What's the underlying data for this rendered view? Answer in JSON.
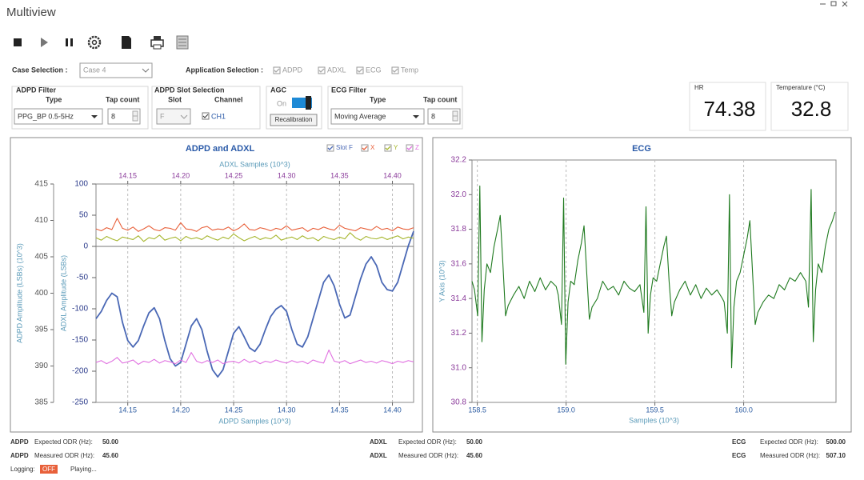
{
  "window": {
    "title": "Multiview"
  },
  "case_selection": {
    "label": "Case Selection :",
    "value": "Case 4"
  },
  "application_selection": {
    "label": "Application Selection :",
    "options": [
      "ADPD",
      "ADXL",
      "ECG",
      "Temp"
    ]
  },
  "adpd_filter": {
    "title": "ADPD Filter",
    "type_label": "Type",
    "tap_label": "Tap count",
    "type": "PPG_BP 0.5-5Hz",
    "tap_count": "8"
  },
  "slot_selection": {
    "title": "ADPD Slot Selection",
    "slot_label": "Slot",
    "channel_label": "Channel",
    "slot": "F",
    "channel": "CH1"
  },
  "agc": {
    "title": "AGC",
    "state": "On",
    "button": "Recalibration"
  },
  "ecg_filter": {
    "title": "ECG Filter",
    "type_label": "Type",
    "tap_label": "Tap count",
    "type": "Moving Average",
    "tap_count": "8"
  },
  "hr": {
    "label": "HR",
    "value": 74.38
  },
  "temperature": {
    "label": "Temperature (°C)",
    "value": 32.8
  },
  "chart_data": [
    {
      "type": "line",
      "title": "ADPD and ADXL",
      "xlabel": "ADPD Samples (10^3)",
      "x2label": "ADXL Samples (10^3)",
      "ylabel": "ADPD Amplitude (LSBs) (10^3)",
      "y2label": "ADXL Amplitude (LSBs)",
      "xlim": [
        14.12,
        14.42
      ],
      "xticks": [
        14.15,
        {
          "value": 14.2,
          "label": "14.20"
        },
        14.25,
        {
          "value": 14.3,
          "label": "14.30"
        },
        14.35,
        {
          "value": 14.4,
          "label": "14.40"
        }
      ],
      "x2ticks": [
        14.15,
        {
          "value": 14.2,
          "label": "14.20"
        },
        14.25,
        {
          "value": 14.3,
          "label": "14.30"
        },
        14.35,
        {
          "value": 14.4,
          "label": "14.40"
        }
      ],
      "ylim": [
        385,
        415
      ],
      "yticks": [
        385,
        390,
        395,
        400,
        405,
        410,
        415
      ],
      "y2lim": [
        -250,
        100
      ],
      "y2ticks": [
        -250,
        -200,
        -150,
        -100,
        -50,
        0,
        50,
        100
      ],
      "grid": "x",
      "x": [
        14.12,
        14.125,
        14.13,
        14.135,
        14.14,
        14.145,
        14.15,
        14.155,
        14.16,
        14.165,
        14.17,
        14.175,
        14.18,
        14.185,
        14.19,
        14.195,
        14.2,
        14.205,
        14.21,
        14.215,
        14.22,
        14.225,
        14.23,
        14.235,
        14.24,
        14.245,
        14.25,
        14.255,
        14.26,
        14.265,
        14.27,
        14.275,
        14.28,
        14.285,
        14.29,
        14.295,
        14.3,
        14.305,
        14.31,
        14.315,
        14.32,
        14.325,
        14.33,
        14.335,
        14.34,
        14.345,
        14.35,
        14.355,
        14.36,
        14.365,
        14.37,
        14.375,
        14.38,
        14.385,
        14.39,
        14.395,
        14.4,
        14.405,
        14.41,
        14.415,
        14.42
      ],
      "series": [
        {
          "name": "Slot F",
          "color": "#4a68b5",
          "axis": "y",
          "values": [
            396.5,
            397.5,
            399,
            400,
            399.5,
            396,
            393.5,
            392.6,
            393.5,
            395.5,
            397.3,
            398,
            396.5,
            393.5,
            391,
            390,
            390.5,
            393,
            395.5,
            396.5,
            395,
            392,
            389.5,
            388.5,
            389.5,
            392,
            394.5,
            395.4,
            394,
            392.5,
            392,
            393,
            395,
            396.8,
            397.8,
            398.3,
            397.5,
            395,
            393,
            392.6,
            394,
            396.5,
            399,
            401.5,
            402.5,
            401,
            398.5,
            396.6,
            397,
            399.5,
            402,
            404,
            405,
            403.8,
            401.5,
            400.5,
            400.3,
            401.5,
            404,
            406.5,
            408.5
          ]
        },
        {
          "name": "X",
          "color": "#e8603a",
          "axis": "y2",
          "values": [
            28,
            25,
            30,
            27,
            45,
            29,
            26,
            31,
            24,
            28,
            33,
            27,
            25,
            30,
            29,
            26,
            38,
            28,
            27,
            24,
            30,
            32,
            26,
            28,
            27,
            31,
            25,
            29,
            36,
            27,
            26,
            30,
            28,
            25,
            29,
            27,
            33,
            26,
            28,
            30,
            24,
            29,
            27,
            31,
            28,
            26,
            34,
            29,
            27,
            25,
            30,
            28,
            26,
            32,
            27,
            29,
            25,
            31,
            28,
            27,
            30
          ]
        },
        {
          "name": "Y",
          "color": "#a6b62e",
          "axis": "y2",
          "values": [
            14,
            10,
            16,
            12,
            9,
            15,
            13,
            11,
            17,
            8,
            14,
            12,
            18,
            10,
            13,
            15,
            9,
            16,
            12,
            14,
            11,
            17,
            13,
            10,
            15,
            12,
            20,
            14,
            9,
            13,
            16,
            11,
            14,
            12,
            18,
            10,
            13,
            15,
            11,
            17,
            12,
            14,
            9,
            16,
            13,
            11,
            15,
            12,
            22,
            14,
            10,
            16,
            13,
            12,
            15,
            11,
            14,
            17,
            12,
            15,
            13
          ]
        },
        {
          "name": "Z",
          "color": "#e070e0",
          "axis": "y2",
          "values": [
            -186,
            -183,
            -188,
            -184,
            -178,
            -187,
            -185,
            -182,
            -189,
            -184,
            -186,
            -181,
            -187,
            -183,
            -185,
            -188,
            -182,
            -186,
            -170,
            -184,
            -187,
            -183,
            -186,
            -182,
            -188,
            -185,
            -184,
            -187,
            -181,
            -186,
            -183,
            -188,
            -184,
            -186,
            -182,
            -185,
            -187,
            -183,
            -186,
            -184,
            -188,
            -182,
            -185,
            -187,
            -166,
            -184,
            -186,
            -183,
            -188,
            -185,
            -182,
            -186,
            -184,
            -187,
            -183,
            -185,
            -188,
            -184,
            -186,
            -183,
            -185
          ]
        }
      ]
    },
    {
      "type": "line",
      "title": "ECG",
      "xlabel": "Samples (10^3)",
      "ylabel": "Y Axis (10^3)",
      "xlim": [
        158.47,
        160.52
      ],
      "xticks": [
        158.5,
        {
          "value": 159,
          "label": "159.0"
        },
        159.5,
        {
          "value": 160,
          "label": "160.0"
        }
      ],
      "ylim": [
        30.8,
        32.2
      ],
      "yticks": [
        30.8,
        {
          "value": 31,
          "label": "31.0"
        },
        31.2,
        31.4,
        31.6,
        31.8,
        {
          "value": 32,
          "label": "32.0"
        },
        32.2
      ],
      "grid": "x",
      "color": "#1f7a1f",
      "x": [
        158.47,
        158.484,
        158.502,
        158.514,
        158.526,
        158.539,
        158.554,
        158.574,
        158.594,
        158.614,
        158.629,
        158.644,
        158.659,
        158.674,
        158.704,
        158.734,
        158.764,
        158.794,
        158.824,
        158.854,
        158.884,
        158.914,
        158.944,
        158.956,
        158.974,
        158.986,
        158.998,
        159.011,
        159.026,
        159.046,
        159.066,
        159.086,
        159.101,
        159.116,
        159.131,
        159.146,
        159.176,
        159.206,
        159.236,
        159.266,
        159.296,
        159.326,
        159.356,
        159.386,
        159.416,
        159.42,
        159.438,
        159.45,
        159.462,
        159.475,
        159.49,
        159.51,
        159.53,
        159.55,
        159.565,
        159.58,
        159.595,
        159.61,
        159.64,
        159.67,
        159.7,
        159.73,
        159.76,
        159.79,
        159.82,
        159.85,
        159.88,
        159.89,
        159.908,
        159.92,
        159.932,
        159.945,
        159.96,
        159.98,
        160,
        160.02,
        160.035,
        160.05,
        160.065,
        160.08,
        160.11,
        160.14,
        160.17,
        160.2,
        160.23,
        160.26,
        160.29,
        160.32,
        160.35,
        160.365,
        160.38,
        160.392,
        160.405,
        160.42,
        160.44,
        160.46,
        160.48,
        160.5,
        160.515
      ],
      "values": [
        31.5,
        31.45,
        31.3,
        32.05,
        31.15,
        31.45,
        31.6,
        31.55,
        31.7,
        31.8,
        31.88,
        31.6,
        31.3,
        31.36,
        31.42,
        31.47,
        31.4,
        31.5,
        31.44,
        31.52,
        31.45,
        31.5,
        31.47,
        31.42,
        31.25,
        31.98,
        31.02,
        31.38,
        31.5,
        31.48,
        31.62,
        31.72,
        31.82,
        31.55,
        31.28,
        31.35,
        31.4,
        31.5,
        31.45,
        31.47,
        31.42,
        31.5,
        31.46,
        31.44,
        31.48,
        31.45,
        31.32,
        31.93,
        31.2,
        31.42,
        31.52,
        31.5,
        31.6,
        31.7,
        31.76,
        31.5,
        31.3,
        31.38,
        31.45,
        31.5,
        31.42,
        31.48,
        31.4,
        31.46,
        31.42,
        31.45,
        31.4,
        31.38,
        31.2,
        32.0,
        31.0,
        31.35,
        31.5,
        31.55,
        31.65,
        31.75,
        31.85,
        31.55,
        31.25,
        31.32,
        31.38,
        31.42,
        31.4,
        31.48,
        31.45,
        31.52,
        31.5,
        31.55,
        31.5,
        31.35,
        32.03,
        31.15,
        31.45,
        31.6,
        31.55,
        31.7,
        31.8,
        31.85,
        31.9
      ]
    }
  ],
  "status": {
    "adpd": [
      {
        "name": "ADPD",
        "label": "Expected ODR (Hz):",
        "value": "50.00"
      },
      {
        "name": "ADPD",
        "label": "Measured ODR (Hz):",
        "value": "45.60"
      }
    ],
    "adxl": [
      {
        "name": "ADXL",
        "label": "Expected ODR (Hz):",
        "value": "50.00"
      },
      {
        "name": "ADXL",
        "label": "Measured ODR (Hz):",
        "value": "45.60"
      }
    ],
    "ecg": [
      {
        "name": "ECG",
        "label": "Expected ODR (Hz):",
        "value": "500.00"
      },
      {
        "name": "ECG",
        "label": "Measured ODR (Hz):",
        "value": "507.10"
      }
    ],
    "logging": {
      "label": "Logging:",
      "value": "OFF"
    },
    "state": "Playing..."
  }
}
